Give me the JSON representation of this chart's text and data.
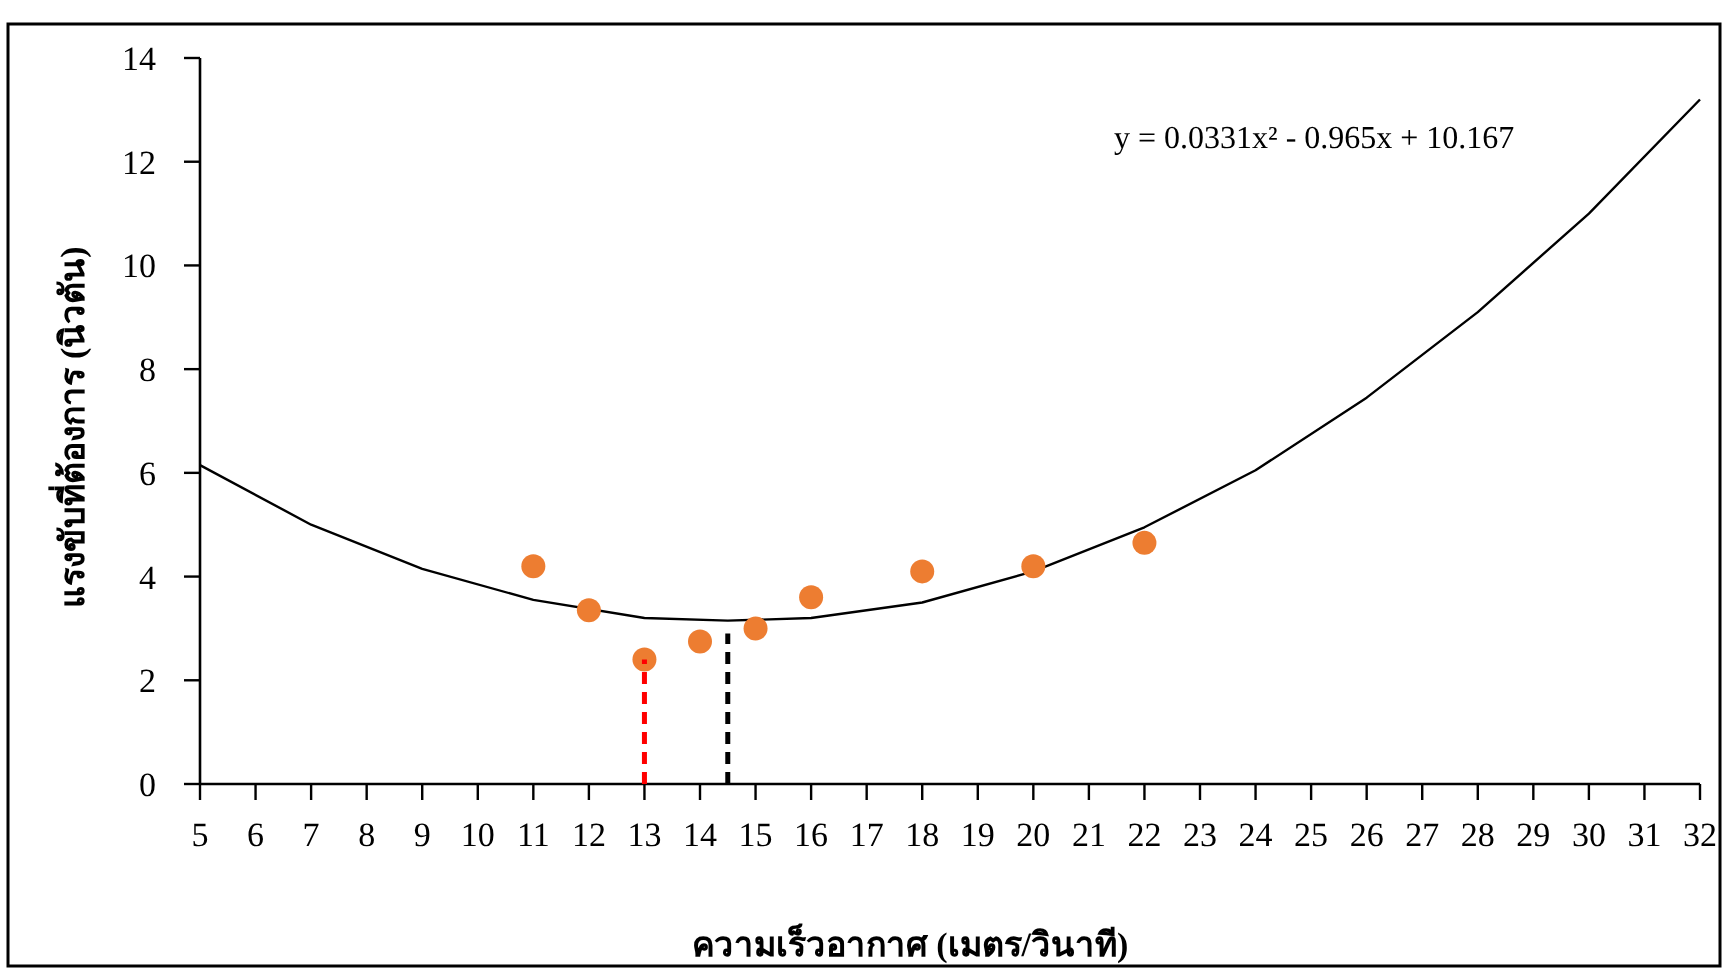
{
  "chart_data": {
    "type": "scatter",
    "xlabel": "ความเร็วอากาศ (เมตร/วินาที)",
    "ylabel": "แรงขับที่ต้องการ (นิวตัน)",
    "annotations": [
      "y = 0.0331x² - 0.965x + 10.167"
    ],
    "xlim": [
      5,
      32
    ],
    "xticks": [
      5,
      6,
      7,
      8,
      9,
      10,
      11,
      12,
      13,
      14,
      15,
      16,
      17,
      18,
      19,
      20,
      21,
      22,
      23,
      24,
      25,
      26,
      27,
      28,
      29,
      30,
      31,
      32
    ],
    "ylim": [
      0,
      14
    ],
    "yticks": [
      0,
      2,
      4,
      6,
      8,
      10,
      12,
      14
    ],
    "grid": false,
    "series": [
      {
        "type": "line",
        "color": "#000000",
        "line_style": "solid",
        "x": [
          5,
          7,
          9,
          11,
          13,
          14.5,
          16,
          18,
          20,
          22,
          24,
          26,
          28,
          30,
          32
        ],
        "values": [
          6.15,
          5.0,
          4.15,
          3.55,
          3.2,
          3.15,
          3.2,
          3.5,
          4.1,
          4.95,
          6.05,
          7.45,
          9.1,
          11.0,
          13.2
        ]
      },
      {
        "color": "#ed7d31",
        "marker": "circle",
        "x": [
          11,
          12,
          13,
          14,
          15,
          16,
          18,
          20,
          22
        ],
        "values": [
          4.2,
          3.35,
          2.4,
          2.75,
          3.0,
          3.6,
          4.1,
          4.2,
          4.65
        ]
      },
      {
        "type": "line",
        "color": "#ff0000",
        "line_style": "dashed",
        "x": [
          13,
          13
        ],
        "values": [
          0,
          2.4
        ]
      },
      {
        "type": "line",
        "color": "#000000",
        "line_style": "dashed",
        "x": [
          14.5,
          14.5
        ],
        "values": [
          0,
          2.9
        ]
      }
    ]
  }
}
